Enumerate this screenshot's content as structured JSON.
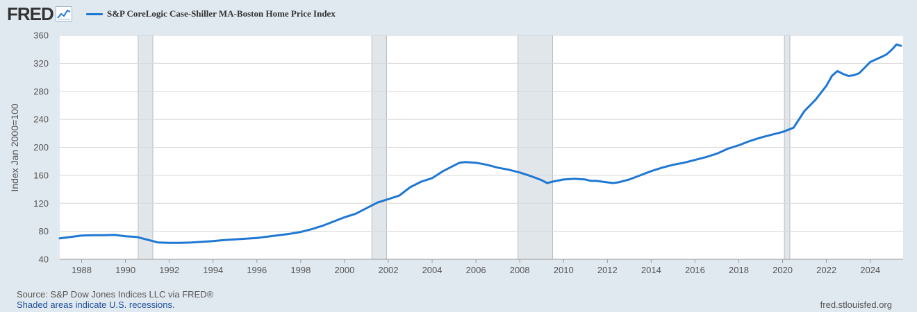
{
  "header": {
    "logo_text": "FRED",
    "logo_icon": "line-chart-icon"
  },
  "legend": {
    "label": "S&P CoreLogic Case-Shiller MA-Boston Home Price Index",
    "color": "#1f77d4"
  },
  "footer": {
    "source": "Source: S&P Dow Jones Indices LLC via FRED®",
    "recession_note": "Shaded areas indicate U.S. recessions.",
    "site": "fred.stlouisfed.org"
  },
  "chart_data": {
    "type": "line",
    "title": "",
    "xlabel": "",
    "ylabel": "Index Jan 2000=100",
    "xlim": [
      1987.0,
      2025.5
    ],
    "ylim": [
      40,
      360
    ],
    "yticks": [
      40,
      80,
      120,
      160,
      200,
      240,
      280,
      320,
      360
    ],
    "xticks": [
      1988,
      1990,
      1992,
      1994,
      1996,
      1998,
      2000,
      2002,
      2004,
      2006,
      2008,
      2010,
      2012,
      2014,
      2016,
      2018,
      2020,
      2022,
      2024
    ],
    "grid": "horizontal",
    "line_color": "#1f77d4",
    "recessions": [
      [
        1990.58,
        1991.25
      ],
      [
        2001.25,
        2001.92
      ],
      [
        2007.92,
        2009.5
      ],
      [
        2020.08,
        2020.33
      ]
    ],
    "series": [
      {
        "name": "S&P CoreLogic Case-Shiller MA-Boston Home Price Index",
        "x": [
          1987.0,
          1987.5,
          1988.0,
          1988.5,
          1989.0,
          1989.5,
          1990.0,
          1990.5,
          1991.0,
          1991.5,
          1992.0,
          1992.5,
          1993.0,
          1993.5,
          1994.0,
          1994.5,
          1995.0,
          1995.5,
          1996.0,
          1996.5,
          1997.0,
          1997.5,
          1998.0,
          1998.5,
          1999.0,
          1999.5,
          2000.0,
          2000.5,
          2001.0,
          2001.5,
          2002.0,
          2002.5,
          2003.0,
          2003.5,
          2004.0,
          2004.5,
          2005.0,
          2005.25,
          2005.5,
          2006.0,
          2006.5,
          2007.0,
          2007.5,
          2008.0,
          2008.5,
          2009.0,
          2009.25,
          2009.5,
          2010.0,
          2010.5,
          2011.0,
          2011.25,
          2011.5,
          2012.0,
          2012.25,
          2012.5,
          2013.0,
          2013.5,
          2014.0,
          2014.5,
          2015.0,
          2015.5,
          2016.0,
          2016.5,
          2017.0,
          2017.5,
          2018.0,
          2018.5,
          2019.0,
          2019.5,
          2020.0,
          2020.5,
          2021.0,
          2021.5,
          2022.0,
          2022.25,
          2022.5,
          2022.75,
          2023.0,
          2023.25,
          2023.5,
          2024.0,
          2024.5,
          2024.75,
          2025.0,
          2025.2,
          2025.4
        ],
        "values": [
          70,
          72,
          74,
          74.5,
          74.5,
          75,
          73,
          72,
          68,
          64,
          63.5,
          63.5,
          64,
          65,
          66,
          67.5,
          68.5,
          69.5,
          70.5,
          72.5,
          74.5,
          76.5,
          79,
          83,
          88,
          94,
          100,
          105,
          113,
          121,
          126,
          131,
          143,
          151,
          156,
          166,
          174,
          178,
          179,
          178,
          175,
          171,
          168,
          164,
          159,
          153,
          149,
          151,
          154,
          155,
          154,
          152,
          152,
          150,
          149,
          150,
          154,
          160,
          166,
          171,
          175,
          178,
          182,
          186,
          191,
          198,
          203,
          209,
          214,
          218,
          222,
          228,
          252,
          268,
          288,
          302,
          309,
          305,
          302,
          303,
          306,
          322,
          329,
          333,
          340,
          347,
          345
        ]
      }
    ]
  }
}
